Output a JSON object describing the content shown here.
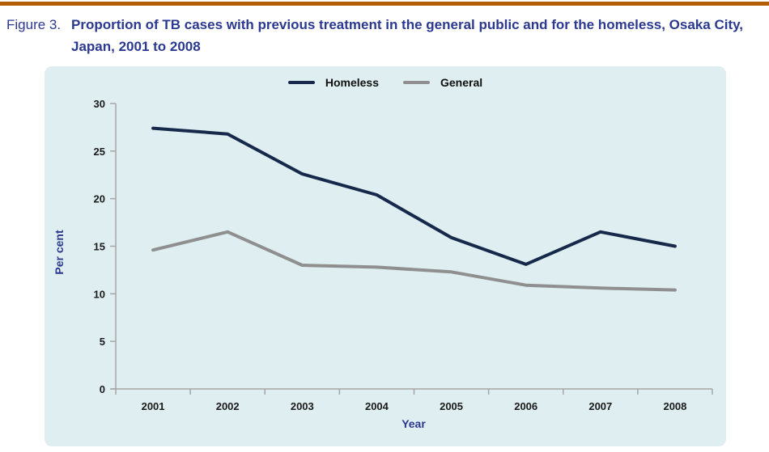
{
  "figure": {
    "label": "Figure 3.",
    "title": "Proportion of TB cases with previous treatment in the general public and for the homeless, Osaka City, Japan, 2001 to 2008"
  },
  "chart_data": {
    "type": "line",
    "categories": [
      "2001",
      "2002",
      "2003",
      "2004",
      "2005",
      "2006",
      "2007",
      "2008"
    ],
    "series": [
      {
        "name": "Homeless",
        "color": "#16294b",
        "values": [
          27.4,
          26.8,
          22.6,
          20.4,
          15.9,
          13.1,
          16.5,
          15.0
        ]
      },
      {
        "name": "General",
        "color": "#8f8f8f",
        "values": [
          14.6,
          16.5,
          13.0,
          12.8,
          12.3,
          10.9,
          10.6,
          10.4
        ]
      }
    ],
    "xlabel": "Year",
    "ylabel": "Per cent",
    "ylim": [
      0,
      30
    ],
    "ytick_step": 5,
    "legend_position": "top-center",
    "grid": false
  },
  "colors": {
    "accent_rule": "#b45f06",
    "title_text": "#2b3990",
    "panel_background": "#dfeef0",
    "axis_line": "#a6a6a6",
    "tick_label": "#1a1a1a",
    "homeless_line": "#16294b",
    "general_line": "#8f8f8f"
  }
}
